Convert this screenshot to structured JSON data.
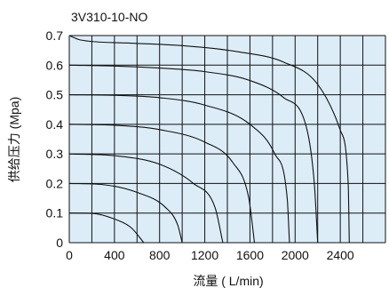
{
  "chart_data": {
    "type": "line",
    "title": "3V310-10-NO",
    "xlabel": "流量 ( L/min)",
    "ylabel": "供给压力 (Mpa)",
    "xlim": [
      0,
      2800
    ],
    "ylim": [
      0,
      0.7
    ],
    "x_ticks": [
      0,
      400,
      800,
      1200,
      1600,
      2000,
      2400
    ],
    "x_tick_labels": [
      "0",
      "400",
      "800",
      "1200",
      "1600",
      "2000",
      "2400"
    ],
    "y_ticks": [
      0,
      0.1,
      0.2,
      0.3,
      0.4,
      0.5,
      0.6,
      0.7
    ],
    "y_tick_labels": [
      "0",
      "0.1",
      "0.2",
      "0.3",
      "0.4",
      "0.5",
      "0.6",
      "0.7"
    ],
    "x_grid_step": 200,
    "y_grid_step": 0.1,
    "grid": true,
    "background_color": "#dcedf8",
    "line_color": "#111111",
    "series": [
      {
        "values": [
          [
            0,
            0.1
          ],
          [
            200,
            0.099
          ],
          [
            400,
            0.08
          ],
          [
            550,
            0.05
          ],
          [
            660,
            0.0
          ]
        ]
      },
      {
        "values": [
          [
            0,
            0.2
          ],
          [
            300,
            0.196
          ],
          [
            600,
            0.17
          ],
          [
            850,
            0.12
          ],
          [
            960,
            0.06
          ],
          [
            1000,
            0.0
          ]
        ]
      },
      {
        "values": [
          [
            0,
            0.3
          ],
          [
            400,
            0.294
          ],
          [
            800,
            0.265
          ],
          [
            1100,
            0.2
          ],
          [
            1290,
            0.12
          ],
          [
            1360,
            0.0
          ]
        ]
      },
      {
        "values": [
          [
            0,
            0.4
          ],
          [
            400,
            0.397
          ],
          [
            800,
            0.382
          ],
          [
            1200,
            0.34
          ],
          [
            1450,
            0.27
          ],
          [
            1590,
            0.15
          ],
          [
            1640,
            0.0
          ]
        ]
      },
      {
        "values": [
          [
            0,
            0.5
          ],
          [
            400,
            0.498
          ],
          [
            800,
            0.49
          ],
          [
            1200,
            0.465
          ],
          [
            1600,
            0.4
          ],
          [
            1820,
            0.3
          ],
          [
            1930,
            0.15
          ],
          [
            1950,
            0.0
          ]
        ]
      },
      {
        "values": [
          [
            0,
            0.6
          ],
          [
            400,
            0.597
          ],
          [
            800,
            0.59
          ],
          [
            1200,
            0.578
          ],
          [
            1600,
            0.548
          ],
          [
            1900,
            0.49
          ],
          [
            2100,
            0.39
          ],
          [
            2170,
            0.2
          ],
          [
            2200,
            0.0
          ]
        ]
      },
      {
        "values": [
          [
            0,
            0.7
          ],
          [
            100,
            0.685
          ],
          [
            500,
            0.675
          ],
          [
            1000,
            0.666
          ],
          [
            1500,
            0.645
          ],
          [
            1900,
            0.61
          ],
          [
            2200,
            0.535
          ],
          [
            2400,
            0.38
          ],
          [
            2470,
            0.2
          ],
          [
            2480,
            0.0
          ]
        ]
      }
    ]
  }
}
